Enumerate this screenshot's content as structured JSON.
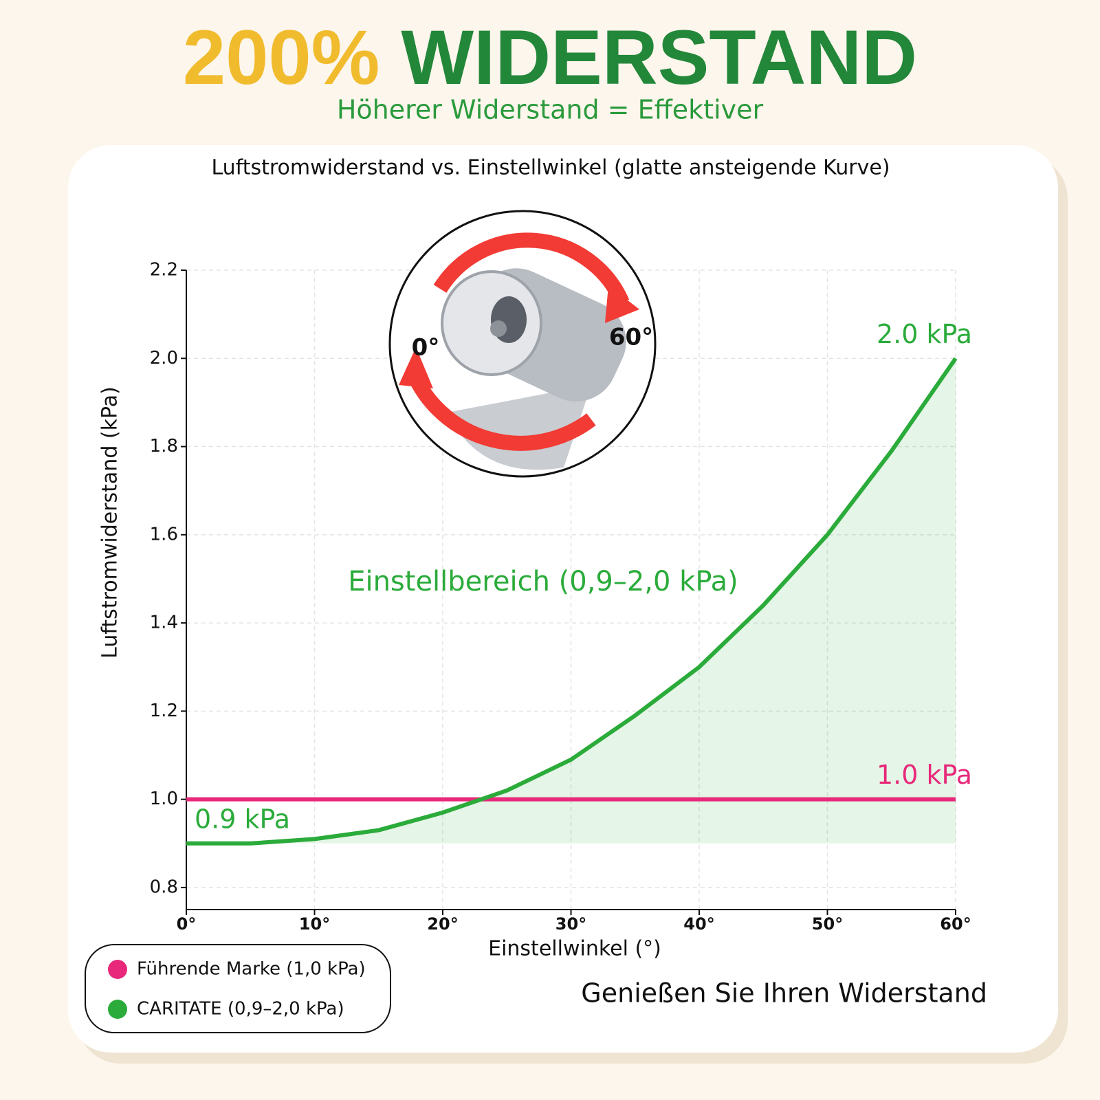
{
  "header": {
    "highlight": "200%",
    "title": "WIDERSTAND",
    "subtitle": "Höherer Widerstand = Effektiver"
  },
  "chart_data": {
    "type": "line",
    "title": "Luftstromwiderstand vs. Einstellwinkel (glatte ansteigende Kurve)",
    "x_label": "Einstellwinkel (°)",
    "y_label": "Luftstromwiderstand (kPa)",
    "x": [
      0,
      5,
      10,
      15,
      20,
      25,
      30,
      35,
      40,
      45,
      50,
      55,
      60
    ],
    "series": [
      {
        "name": "Führende Marke (1,0 kPa)",
        "color": "#e8287a",
        "values": [
          1.0,
          1.0,
          1.0,
          1.0,
          1.0,
          1.0,
          1.0,
          1.0,
          1.0,
          1.0,
          1.0,
          1.0,
          1.0
        ],
        "value_labels": [
          null,
          null,
          null,
          null,
          null,
          null,
          null,
          null,
          null,
          null,
          null,
          null,
          "1.0 kPa"
        ]
      },
      {
        "name": "CARITATE (0,9–2,0 kPa)",
        "color": "#2aab3a",
        "values": [
          0.9,
          0.9,
          0.91,
          0.93,
          0.97,
          1.02,
          1.09,
          1.19,
          1.3,
          1.44,
          1.6,
          1.79,
          2.0
        ],
        "value_labels": [
          "0.9 kPa",
          null,
          null,
          null,
          null,
          null,
          null,
          null,
          null,
          null,
          null,
          null,
          "2.0 kPa"
        ],
        "fill": true
      }
    ],
    "annotation": "Einstellbereich (0,9–2,0 kPa)",
    "xlim": [
      0,
      60
    ],
    "xticks": [
      {
        "value": 0,
        "label": "0°"
      },
      {
        "value": 10,
        "label": "10°"
      },
      {
        "value": 20,
        "label": "20°"
      },
      {
        "value": 30,
        "label": "30°"
      },
      {
        "value": 40,
        "label": "40°"
      },
      {
        "value": 50,
        "label": "50°"
      },
      {
        "value": 60,
        "label": "60°"
      }
    ],
    "ylim": [
      0.75,
      2.2
    ],
    "yticks": [
      0.8,
      {
        "value": 1,
        "label": "1.0"
      },
      1.2,
      1.4,
      1.6,
      1.8,
      {
        "value": 2,
        "label": "2.0"
      },
      2.2
    ],
    "grid": true
  },
  "illustration": {
    "labels": [
      "0°",
      "60°"
    ]
  },
  "footer": "Genießen Sie Ihren Widerstand"
}
